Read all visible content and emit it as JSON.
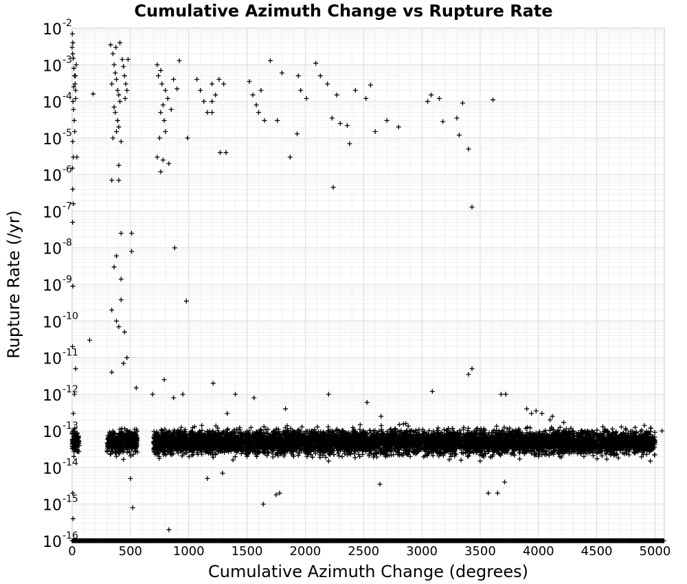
{
  "chart_data": {
    "type": "scatter",
    "title": "Cumulative Azimuth Change vs Rupture Rate",
    "xlabel": "Cumulative Azimuth Change (degrees)",
    "ylabel": "Rupture Rate (/yr)",
    "xlim": [
      0,
      5080
    ],
    "ylim": [
      1e-16,
      0.01
    ],
    "y_scale": "log",
    "grid": true,
    "marker": "plus",
    "marker_color": "#000000",
    "x_ticks": [
      0,
      500,
      1000,
      1500,
      2000,
      2500,
      3000,
      3500,
      4000,
      4500,
      5000
    ],
    "y_ticks": [
      {
        "base": "10",
        "exp": "-2",
        "value": 0.01
      },
      {
        "base": "10",
        "exp": "-3",
        "value": 0.001
      },
      {
        "base": "10",
        "exp": "-4",
        "value": 0.0001
      },
      {
        "base": "10",
        "exp": "-5",
        "value": 1e-05
      },
      {
        "base": "10",
        "exp": "-6",
        "value": 1e-06
      },
      {
        "base": "10",
        "exp": "-7",
        "value": 1e-07
      },
      {
        "base": "10",
        "exp": "-8",
        "value": 1e-08
      },
      {
        "base": "10",
        "exp": "-9",
        "value": 1e-09
      },
      {
        "base": "10",
        "exp": "-10",
        "value": 1e-10
      },
      {
        "base": "10",
        "exp": "-11",
        "value": 1e-11
      },
      {
        "base": "10",
        "exp": "-12",
        "value": 1e-12
      },
      {
        "base": "10",
        "exp": "-13",
        "value": 1e-13
      },
      {
        "base": "10",
        "exp": "-14",
        "value": 1e-14
      },
      {
        "base": "10",
        "exp": "-15",
        "value": 1e-15
      },
      {
        "base": "10",
        "exp": "-16",
        "value": 1e-16
      }
    ],
    "series": [
      {
        "points": [
          [
            0,
            0.003
          ],
          [
            5,
            0.002
          ],
          [
            10,
            0.0015
          ],
          [
            15,
            0.0008
          ],
          [
            20,
            0.0005
          ],
          [
            25,
            0.0003
          ],
          [
            30,
            0.0002
          ],
          [
            8,
            0.0001
          ],
          [
            12,
            6e-05
          ],
          [
            18,
            3e-05
          ],
          [
            22,
            1.5e-05
          ],
          [
            5,
            8e-06
          ],
          [
            10,
            3e-06
          ],
          [
            2,
            0.007
          ],
          [
            6,
            0.004
          ],
          [
            30,
            0.00012
          ],
          [
            40,
            3e-06
          ],
          [
            3,
            1.5e-06
          ],
          [
            5,
            4e-07
          ],
          [
            10,
            1.6e-07
          ],
          [
            4,
            5e-08
          ],
          [
            6,
            9e-10
          ],
          [
            3,
            2e-11
          ],
          [
            30,
            5e-12
          ],
          [
            20,
            1e-12
          ],
          [
            10,
            3e-13
          ],
          [
            15,
            2e-14
          ],
          [
            5,
            2e-15
          ],
          [
            8,
            4e-16
          ],
          [
            35,
            0.001
          ],
          [
            28,
            0.0005
          ],
          [
            14,
            0.00025
          ],
          [
            180,
            0.00016
          ],
          [
            150,
            3e-11
          ],
          [
            330,
            0.0035
          ],
          [
            350,
            0.002
          ],
          [
            360,
            0.001
          ],
          [
            370,
            0.0006
          ],
          [
            380,
            0.0004
          ],
          [
            340,
            0.0003
          ],
          [
            390,
            0.0002
          ],
          [
            400,
            0.00015
          ],
          [
            410,
            0.0001
          ],
          [
            360,
            7e-05
          ],
          [
            370,
            5e-05
          ],
          [
            390,
            3e-05
          ],
          [
            400,
            2e-05
          ],
          [
            380,
            1.5e-05
          ],
          [
            350,
            1e-05
          ],
          [
            420,
            8e-06
          ],
          [
            400,
            1.8e-06
          ],
          [
            340,
            7e-07
          ],
          [
            400,
            7e-07
          ],
          [
            420,
            2.5e-08
          ],
          [
            510,
            2.5e-08
          ],
          [
            380,
            6e-09
          ],
          [
            510,
            8e-09
          ],
          [
            360,
            3e-09
          ],
          [
            420,
            1.4e-09
          ],
          [
            420,
            3.8e-10
          ],
          [
            340,
            2e-10
          ],
          [
            380,
            1e-10
          ],
          [
            400,
            7e-11
          ],
          [
            450,
            5e-11
          ],
          [
            470,
            1e-11
          ],
          [
            440,
            7e-12
          ],
          [
            340,
            4e-12
          ],
          [
            430,
            0.0014
          ],
          [
            440,
            0.0009
          ],
          [
            450,
            0.0005
          ],
          [
            460,
            0.0003
          ],
          [
            470,
            0.0002
          ],
          [
            455,
            0.00012
          ],
          [
            480,
            0.0014
          ],
          [
            410,
            0.004
          ],
          [
            375,
            0.003
          ],
          [
            730,
            0.001
          ],
          [
            760,
            0.0007
          ],
          [
            740,
            0.0005
          ],
          [
            770,
            0.0003
          ],
          [
            800,
            0.0002
          ],
          [
            820,
            0.00012
          ],
          [
            780,
            8e-05
          ],
          [
            760,
            5e-05
          ],
          [
            790,
            3e-05
          ],
          [
            800,
            1.5e-05
          ],
          [
            750,
            1e-05
          ],
          [
            730,
            3e-06
          ],
          [
            780,
            2.5e-06
          ],
          [
            760,
            1.2e-06
          ],
          [
            830,
            2e-06
          ],
          [
            880,
            1e-08
          ],
          [
            980,
            3.5e-10
          ],
          [
            870,
            0.0004
          ],
          [
            900,
            0.00022
          ],
          [
            920,
            0.0013
          ],
          [
            990,
            1e-05
          ],
          [
            850,
            6e-05
          ],
          [
            1070,
            0.0004
          ],
          [
            1100,
            0.0002
          ],
          [
            1130,
            0.0001
          ],
          [
            1160,
            5e-05
          ],
          [
            1200,
            0.0003
          ],
          [
            1230,
            0.00015
          ],
          [
            1260,
            0.0004
          ],
          [
            1300,
            0.0003
          ],
          [
            1200,
            5e-05
          ],
          [
            1270,
            4e-06
          ],
          [
            1320,
            4e-06
          ],
          [
            1520,
            0.00035
          ],
          [
            1550,
            0.00015
          ],
          [
            1580,
            8e-05
          ],
          [
            1600,
            5e-05
          ],
          [
            1620,
            0.0002
          ],
          [
            1650,
            3e-05
          ],
          [
            1700,
            0.0013
          ],
          [
            1760,
            3e-05
          ],
          [
            1800,
            0.0006
          ],
          [
            1870,
            3e-06
          ],
          [
            1940,
            0.0005
          ],
          [
            1960,
            0.0002
          ],
          [
            2010,
            0.00012
          ],
          [
            2090,
            0.0011
          ],
          [
            2130,
            0.0005
          ],
          [
            2190,
            0.0003
          ],
          [
            2230,
            3.5e-05
          ],
          [
            2270,
            0.00015
          ],
          [
            2300,
            2.5e-05
          ],
          [
            2360,
            2.2e-05
          ],
          [
            2380,
            7e-06
          ],
          [
            2430,
            0.0002
          ],
          [
            2520,
            0.00012
          ],
          [
            2560,
            0.00028
          ],
          [
            2600,
            1.5e-05
          ],
          [
            2700,
            3e-05
          ],
          [
            2800,
            2e-05
          ],
          [
            3050,
            0.0001
          ],
          [
            3080,
            0.00015
          ],
          [
            3150,
            0.00012
          ],
          [
            3180,
            2.8e-05
          ],
          [
            3300,
            3.5e-05
          ],
          [
            3320,
            1.2e-05
          ],
          [
            3350,
            9e-05
          ],
          [
            3400,
            5e-06
          ],
          [
            3430,
            1.3e-07
          ],
          [
            3610,
            0.00011
          ],
          [
            2240,
            4.5e-07
          ],
          [
            1930,
            1.3e-05
          ],
          [
            1200,
            0.0001
          ],
          [
            3400,
            3.5e-12
          ],
          [
            3430,
            5e-12
          ],
          [
            3090,
            1.2e-12
          ],
          [
            3680,
            1e-12
          ],
          [
            3720,
            1e-12
          ],
          [
            3900,
            4e-13
          ],
          [
            3940,
            3e-13
          ],
          [
            4100,
            2e-13
          ],
          [
            3980,
            3.5e-13
          ],
          [
            4030,
            3e-13
          ],
          [
            4120,
            2.5e-13
          ],
          [
            550,
            1.5e-12
          ],
          [
            690,
            1e-12
          ],
          [
            790,
            2.5e-12
          ],
          [
            870,
            8e-13
          ],
          [
            950,
            1e-12
          ],
          [
            1210,
            2e-12
          ],
          [
            1330,
            3e-13
          ],
          [
            1400,
            1e-12
          ],
          [
            1560,
            8e-13
          ],
          [
            1830,
            4e-13
          ],
          [
            2200,
            1e-12
          ],
          [
            2530,
            6e-13
          ],
          [
            2650,
            2.5e-13
          ],
          [
            1640,
            1e-15
          ],
          [
            1750,
            1.8e-15
          ],
          [
            1780,
            2e-15
          ],
          [
            1290,
            7e-15
          ],
          [
            1160,
            5e-15
          ],
          [
            500,
            5e-15
          ],
          [
            520,
            8e-16
          ],
          [
            830,
            2e-16
          ],
          [
            380,
            2e-14
          ],
          [
            470,
            4e-14
          ],
          [
            2640,
            3.5e-15
          ],
          [
            3570,
            2e-15
          ],
          [
            3650,
            2e-15
          ],
          [
            3710,
            4e-15
          ],
          [
            4390,
            2e-14
          ],
          [
            4960,
            1.5e-14
          ],
          [
            5060,
            1e-13
          ],
          [
            4700,
            3e-14
          ],
          [
            4900,
            5e-14
          ],
          [
            4200,
            3e-14
          ],
          [
            4000,
            2e-14
          ],
          [
            3500,
            1.5e-14
          ],
          [
            3250,
            2e-14
          ],
          [
            2900,
            2e-14
          ],
          [
            2200,
            1.5e-14
          ],
          [
            1900,
            2e-14
          ],
          [
            1500,
            2e-14
          ],
          [
            1000,
            3e-14
          ],
          [
            700,
            3e-14
          ]
        ]
      }
    ],
    "dense_band": {
      "note_free": true,
      "y_center": 5e-14,
      "x_range": [
        0,
        5000
      ],
      "segments": [
        [
          0,
          60
        ],
        [
          300,
          560
        ],
        [
          700,
          5000
        ]
      ]
    },
    "baseline_row": {
      "y": 1e-16,
      "x_range": [
        0,
        5080
      ]
    }
  }
}
